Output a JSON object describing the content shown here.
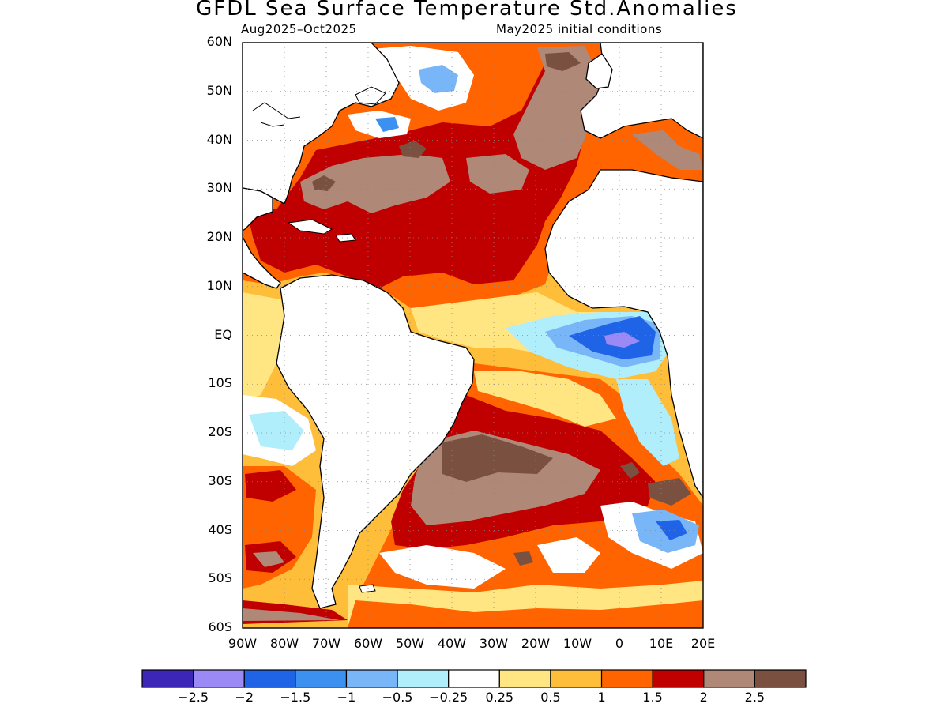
{
  "map": {
    "title": "GFDL Sea Surface Temperature Std.Anomalies",
    "period": "Aug2025–Oct2025",
    "initial_conditions": "May2025 initial conditions",
    "lat_labels": [
      "60N",
      "50N",
      "40N",
      "30N",
      "20N",
      "10N",
      "EQ",
      "10S",
      "20S",
      "30S",
      "40S",
      "50S",
      "60S"
    ],
    "lon_labels": [
      "90W",
      "80W",
      "70W",
      "60W",
      "50W",
      "40W",
      "30W",
      "20W",
      "10W",
      "0",
      "10E",
      "20E"
    ],
    "lon_range": [
      -90,
      20
    ],
    "lat_range": [
      -60,
      60
    ],
    "grid": "dotted"
  },
  "colorbar": {
    "labels": [
      "−2.5",
      "−2",
      "−1.5",
      "−1",
      "−0.5",
      "−0.25",
      "0.25",
      "0.5",
      "1",
      "1.5",
      "2",
      "2.5"
    ],
    "colors": [
      "#3b26b8",
      "#9b8af5",
      "#1f63e6",
      "#3c91f0",
      "#78b6f8",
      "#b0eefc",
      "#ffffff",
      "#ffe682",
      "#ffbe3a",
      "#ff6400",
      "#c00000",
      "#b08878",
      "#7a5040"
    ]
  },
  "legend_colors": {
    "land": "#ffffff",
    "coast": "#000000"
  }
}
